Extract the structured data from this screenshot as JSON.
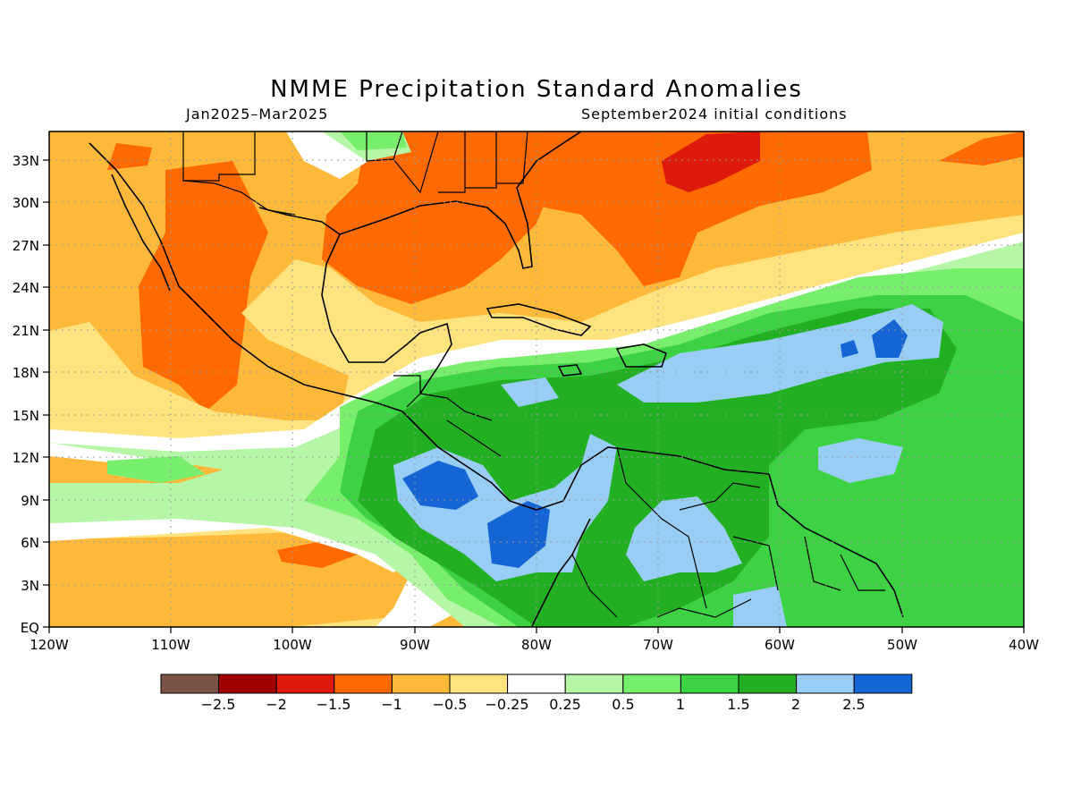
{
  "header": {
    "title": "NMME Precipitation Standard Anomalies",
    "period": "Jan2025–Mar2025",
    "init": "September2024 initial conditions"
  },
  "map": {
    "lon_labels": [
      "120W",
      "110W",
      "100W",
      "90W",
      "80W",
      "70W",
      "60W",
      "50W",
      "40W"
    ],
    "lat_labels": [
      "EQ",
      "3N",
      "6N",
      "9N",
      "12N",
      "15N",
      "18N",
      "21N",
      "24N",
      "27N",
      "30N",
      "33N"
    ],
    "grid": "dotted"
  },
  "legend": {
    "labels": [
      "−2.5",
      "−2",
      "−1.5",
      "−1",
      "−0.5",
      "−0.25",
      "0.25",
      "0.5",
      "1",
      "1.5",
      "2",
      "2.5"
    ],
    "colors": [
      "#7a5246",
      "#a20000",
      "#dd1a0c",
      "#ff6a00",
      "#ffb93a",
      "#ffe37f",
      "#ffffff",
      "#b5f7a7",
      "#78ee6d",
      "#3cd243",
      "#22b022",
      "#98cef6",
      "#1565d4"
    ]
  }
}
